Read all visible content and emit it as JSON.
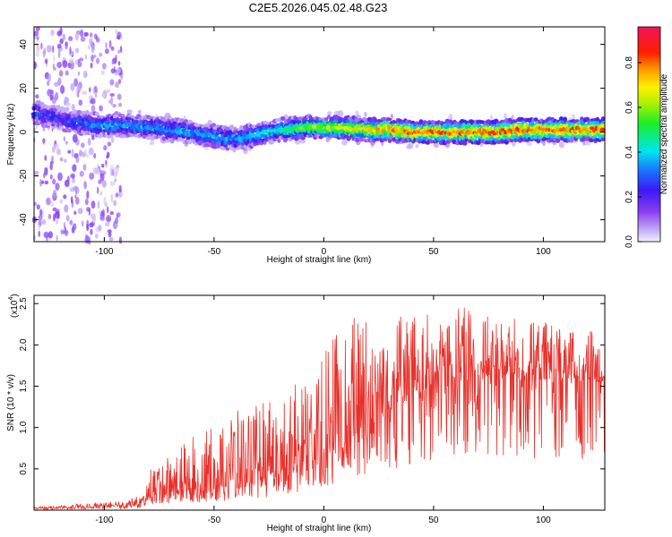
{
  "title": "C2E5.2026.045.02.48.G23",
  "colors": {
    "snr_line": "#e8302a",
    "axis": "#000000",
    "spectrogram_low": "#b79cf0"
  },
  "chart_data": [
    {
      "type": "heatmap",
      "name": "spectrogram",
      "xlabel": "Height of straight line (km)",
      "ylabel": "Frequency (Hz)",
      "xlim": [
        -132,
        128
      ],
      "ylim": [
        -50,
        48
      ],
      "x_ticks": [
        -100,
        -50,
        0,
        50,
        100
      ],
      "y_ticks": [
        -40,
        -20,
        0,
        20,
        40
      ],
      "colorbar": {
        "label": "Normalized spectral amplitude",
        "range": [
          0,
          0.96
        ],
        "ticks": [
          0.0,
          0.2,
          0.4,
          0.6,
          0.8
        ],
        "colormap": "rainbow (purple-blue-cyan-green-yellow-orange-red-magenta)"
      },
      "ridge": {
        "x": [
          -132,
          -120,
          -110,
          -100,
          -90,
          -80,
          -70,
          -60,
          -50,
          -40,
          -30,
          -20,
          -10,
          0,
          10,
          20,
          30,
          40,
          50,
          60,
          70,
          80,
          90,
          100,
          110,
          120,
          128
        ],
        "freq": [
          9,
          6,
          4,
          3,
          3,
          2,
          1,
          0,
          -2,
          -3,
          -1,
          1,
          2,
          2,
          2,
          1,
          1,
          0,
          0,
          0,
          0,
          0,
          1,
          1,
          1,
          1,
          1
        ],
        "amplitude": [
          0.25,
          0.25,
          0.3,
          0.35,
          0.35,
          0.35,
          0.35,
          0.35,
          0.35,
          0.35,
          0.4,
          0.45,
          0.55,
          0.6,
          0.65,
          0.7,
          0.75,
          0.8,
          0.8,
          0.8,
          0.8,
          0.8,
          0.8,
          0.8,
          0.8,
          0.8,
          0.8
        ]
      }
    },
    {
      "type": "line",
      "name": "snr",
      "xlabel": "Height of straight line (km)",
      "ylabel": "SNR (10 * v/v)",
      "y_multiplier_label": "(x10",
      "y_multiplier_exp": "4",
      "xlim": [
        -132,
        128
      ],
      "ylim": [
        0,
        2.6
      ],
      "x_ticks": [
        -100,
        -50,
        0,
        50,
        100
      ],
      "y_ticks": [
        0.5,
        1.0,
        1.5,
        2.0,
        2.5
      ],
      "envelope": {
        "x": [
          -132,
          -110,
          -90,
          -82,
          -80,
          -70,
          -60,
          -50,
          -40,
          -30,
          -20,
          -10,
          0,
          10,
          20,
          30,
          40,
          50,
          60,
          70,
          80,
          90,
          100,
          110,
          120,
          128
        ],
        "base": [
          0.02,
          0.03,
          0.05,
          0.06,
          0.15,
          0.18,
          0.2,
          0.25,
          0.3,
          0.35,
          0.45,
          0.55,
          0.65,
          0.8,
          1.0,
          1.2,
          1.35,
          1.5,
          1.55,
          1.6,
          1.6,
          1.55,
          1.55,
          1.55,
          1.55,
          1.55
        ],
        "peak": [
          0.04,
          0.08,
          0.12,
          0.2,
          0.5,
          0.7,
          0.9,
          1.0,
          1.2,
          1.3,
          1.45,
          1.55,
          1.9,
          2.4,
          2.4,
          2.3,
          2.4,
          2.35,
          2.55,
          2.35,
          2.35,
          2.3,
          2.3,
          2.25,
          2.2,
          2.1
        ]
      }
    }
  ]
}
